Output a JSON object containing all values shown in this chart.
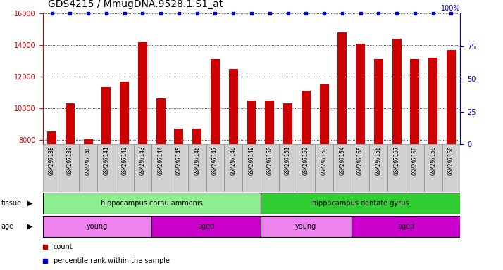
{
  "title": "GDS4215 / MmugDNA.9528.1.S1_at",
  "samples": [
    "GSM297138",
    "GSM297139",
    "GSM297140",
    "GSM297141",
    "GSM297142",
    "GSM297143",
    "GSM297144",
    "GSM297145",
    "GSM297146",
    "GSM297147",
    "GSM297148",
    "GSM297149",
    "GSM297150",
    "GSM297151",
    "GSM297152",
    "GSM297153",
    "GSM297154",
    "GSM297155",
    "GSM297156",
    "GSM297157",
    "GSM297158",
    "GSM297159",
    "GSM297160"
  ],
  "counts": [
    8500,
    10300,
    8050,
    11350,
    11700,
    14200,
    10600,
    8700,
    8700,
    13100,
    12500,
    10500,
    10500,
    10300,
    11100,
    11500,
    14800,
    14100,
    13100,
    14400,
    13100,
    13200,
    13700
  ],
  "percentile_rank": [
    100,
    100,
    100,
    100,
    100,
    100,
    100,
    100,
    100,
    100,
    100,
    100,
    100,
    100,
    100,
    100,
    100,
    100,
    100,
    100,
    100,
    100,
    100
  ],
  "bar_color": "#cc0000",
  "percentile_color": "#0000cc",
  "ylim_left": [
    7700,
    16000
  ],
  "yticks_left": [
    8000,
    10000,
    12000,
    14000,
    16000
  ],
  "ylim_right": [
    0,
    100
  ],
  "yticks_right": [
    0,
    25,
    50,
    75,
    100
  ],
  "tissue_groups": [
    {
      "label": "hippocampus cornu ammonis",
      "start": 0,
      "end": 12,
      "color": "#90ee90"
    },
    {
      "label": "hippocampus dentate gyrus",
      "start": 12,
      "end": 23,
      "color": "#32cd32"
    }
  ],
  "age_groups": [
    {
      "label": "young",
      "start": 0,
      "end": 6,
      "color": "#ee82ee"
    },
    {
      "label": "aged",
      "start": 6,
      "end": 12,
      "color": "#cc00cc"
    },
    {
      "label": "young",
      "start": 12,
      "end": 17,
      "color": "#ee82ee"
    },
    {
      "label": "aged",
      "start": 17,
      "end": 23,
      "color": "#cc00cc"
    }
  ],
  "background_color": "#ffffff",
  "tick_label_color_left": "#cc0000",
  "tick_label_color_right": "#0000cc",
  "title_fontsize": 10,
  "tick_fontsize": 7,
  "bar_width": 0.5,
  "legend_count_color": "#cc0000",
  "legend_pct_color": "#0000cc",
  "xtick_box_color": "#d0d0d0"
}
